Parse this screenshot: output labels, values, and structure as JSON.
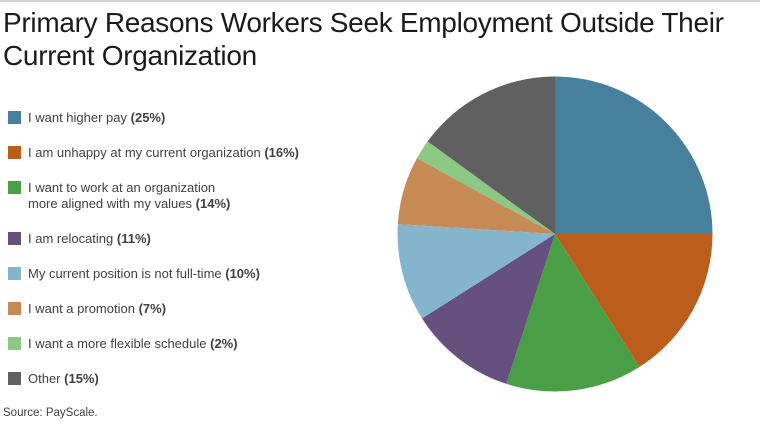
{
  "page": {
    "title": "Primary Reasons Workers Seek Employment Outside Their Current Organization",
    "source": "Source: PayScale."
  },
  "chart_data": {
    "type": "pie",
    "title": "Primary Reasons Workers Seek Employment Outside Their Current Organization",
    "categories": [
      "I want higher pay",
      "I am unhappy at my current organization",
      "I want to work at an organization more aligned with my values",
      "I am relocating",
      "My current position is not full-time",
      "I want a promotion",
      "I want a more flexible schedule",
      "Other"
    ],
    "values": [
      25,
      16,
      14,
      11,
      10,
      7,
      2,
      15
    ],
    "unit": "%",
    "colors": [
      "#47809C",
      "#BB5E1C",
      "#4A9E45",
      "#65507E",
      "#85B5CD",
      "#C68A55",
      "#8CC783",
      "#606060"
    ],
    "start_angle_deg": 0,
    "direction": "clockwise",
    "legend_position": "left",
    "source": "Source: PayScale."
  },
  "legend": {
    "items": [
      {
        "text": "I want higher pay",
        "pct": "(25%)"
      },
      {
        "text": "I am unhappy at my current organization",
        "pct": "(16%)"
      },
      {
        "text": "I want to work at an organization\nmore aligned with my values",
        "pct": "(14%)"
      },
      {
        "text": "I am relocating",
        "pct": "(11%)"
      },
      {
        "text": "My current position is not full-time",
        "pct": "(10%)"
      },
      {
        "text": "I want a promotion",
        "pct": "(7%)"
      },
      {
        "text": "I want a more flexible schedule",
        "pct": "(2%)"
      },
      {
        "text": "Other",
        "pct": "(15%)"
      }
    ]
  }
}
